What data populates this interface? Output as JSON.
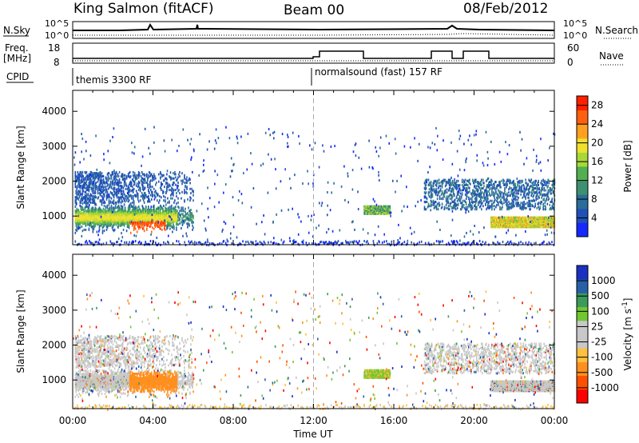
{
  "header": {
    "station": "King Salmon (fitACF)",
    "beam": "Beam 00",
    "date": "08/Feb/2012"
  },
  "summary": {
    "left_top_label": "N.Sky",
    "left_top_ticks": [
      "10^5",
      "10^0"
    ],
    "right_top_label": "N.Search",
    "right_top_ticks": [
      "10^5",
      "10^0"
    ],
    "freq_label": "Freq.",
    "freq_unit": "[MHz]",
    "freq_ticks": [
      "18",
      "8"
    ],
    "nave_label": "Nave",
    "nave_ticks": [
      "60",
      "0"
    ],
    "cpid_label": "CPID",
    "cpid_modes": [
      "themis 3300 RF",
      "normalsound (fast) 157 RF"
    ]
  },
  "colors": {
    "power_scale": [
      "#1428ff",
      "#2050b8",
      "#2a6c9a",
      "#3d9070",
      "#52b050",
      "#a8d838",
      "#f0e030",
      "#ffa020",
      "#ff6010",
      "#ff2000"
    ],
    "velocity_scale": [
      "#ff0000",
      "#ff5000",
      "#ff9020",
      "#ffc040",
      "#c8c8c8",
      "#c8c8c8",
      "#70c830",
      "#3c9a5a",
      "#2860a8",
      "#1a30c0"
    ],
    "ground_scatter": "#c8c8c8"
  },
  "chart_data": [
    {
      "type": "heatmap",
      "title": "Power",
      "xlabel": "",
      "ylabel": "Slant Range [km]",
      "x_ticks": [
        "00:00",
        "04:00",
        "08:00",
        "12:00",
        "16:00",
        "20:00",
        "00:00"
      ],
      "xlim_hours": [
        0,
        24
      ],
      "ylim_km": [
        180,
        4600
      ],
      "y_ticks": [
        1000,
        2000,
        3000,
        4000
      ],
      "colorbar": {
        "label": "Power [dB]",
        "range": [
          0,
          30
        ],
        "ticks": [
          4,
          8,
          12,
          16,
          20,
          24,
          28
        ]
      },
      "scatter_regions": [
        {
          "t_start": 0.0,
          "t_end": 6.0,
          "r_min": 700,
          "r_max": 2300,
          "peak_db": 28
        },
        {
          "t_start": 14.5,
          "t_end": 15.8,
          "r_min": 1100,
          "r_max": 1300,
          "peak_db": 20
        },
        {
          "t_start": 17.5,
          "t_end": 24.0,
          "r_min": 700,
          "r_max": 2400,
          "peak_db": 22
        }
      ]
    },
    {
      "type": "heatmap",
      "title": "Velocity",
      "xlabel": "Time UT",
      "ylabel": "Slant Range [km]",
      "x_ticks": [
        "00:00",
        "04:00",
        "08:00",
        "12:00",
        "16:00",
        "20:00",
        "00:00"
      ],
      "xlim_hours": [
        0,
        24
      ],
      "ylim_km": [
        180,
        4600
      ],
      "y_ticks": [
        1000,
        2000,
        3000,
        4000
      ],
      "colorbar": {
        "label": "Velocity [m s^-1]",
        "label_main": "Velocity",
        "label_unit": "[m s",
        "label_exp": "-1",
        "label_close": "]",
        "tick_labels": [
          "1000",
          "500",
          "100",
          "25",
          "-25",
          "-100",
          "-500",
          "-1000"
        ]
      }
    }
  ]
}
